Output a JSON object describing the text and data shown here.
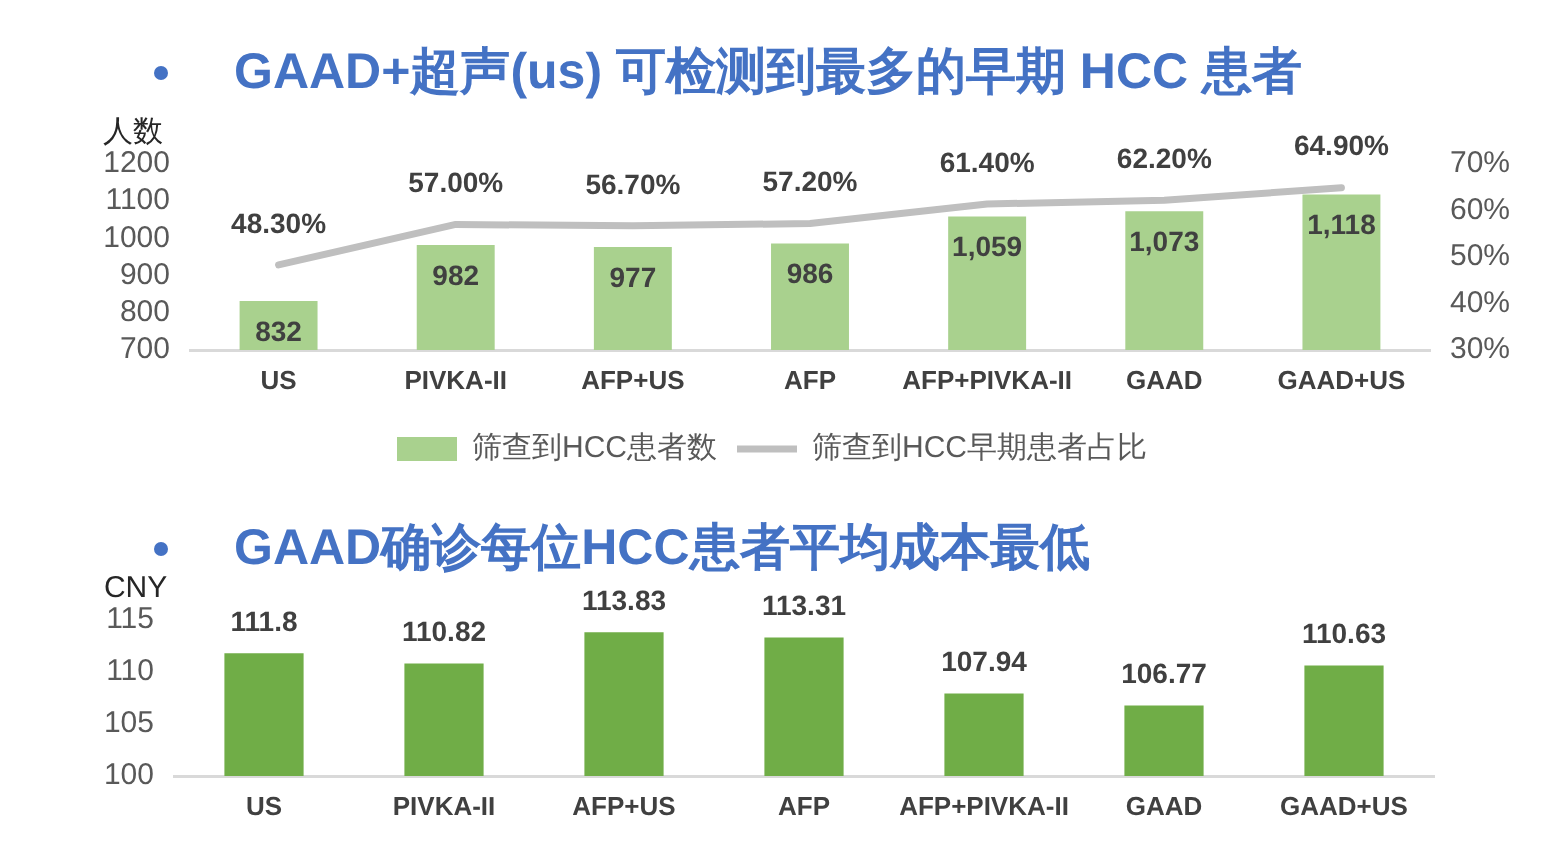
{
  "chart_data": [
    {
      "type": "bar",
      "title": "GAAD+超声(us) 可检测到最多的早期 HCC 患者",
      "ylabel": "人数",
      "categories": [
        "US",
        "PIVKA-II",
        "AFP+US",
        "AFP",
        "AFP+PIVKA-II",
        "GAAD",
        "GAAD+US"
      ],
      "series": [
        {
          "name": "筛查到HCC患者数",
          "color": "#a9d18e",
          "values": [
            832,
            982,
            977,
            986,
            1059,
            1073,
            1118
          ],
          "value_labels": [
            "832",
            "982",
            "977",
            "986",
            "1,059",
            "1,073",
            "1,118"
          ]
        },
        {
          "name": "筛查到HCC早期患者占比",
          "type": "line",
          "axis": "y2",
          "color": "#bfbfbf",
          "values": [
            48.3,
            57.0,
            56.7,
            57.2,
            61.4,
            62.2,
            64.9
          ],
          "value_labels": [
            "48.30%",
            "57.00%",
            "56.70%",
            "57.20%",
            "61.40%",
            "62.20%",
            "64.90%"
          ]
        }
      ],
      "ylim": [
        700,
        1200
      ],
      "yticks": [
        700,
        800,
        900,
        1000,
        1100,
        1200
      ],
      "y2lim": [
        30,
        70
      ],
      "y2ticks": [
        {
          "value": 30,
          "label": "30%"
        },
        {
          "value": 40,
          "label": "40%"
        },
        {
          "value": 50,
          "label": "50%"
        },
        {
          "value": 60,
          "label": "60%"
        },
        {
          "value": 70,
          "label": "70%"
        }
      ],
      "legend": "bottom",
      "marker": "none"
    },
    {
      "type": "bar",
      "title": "GAAD确诊每位HCC患者平均成本最低",
      "ylabel": "CNY",
      "categories": [
        "US",
        "PIVKA-II",
        "AFP+US",
        "AFP",
        "AFP+PIVKA-II",
        "GAAD",
        "GAAD+US"
      ],
      "values": [
        111.8,
        110.82,
        113.83,
        113.31,
        107.94,
        106.77,
        110.63
      ],
      "color": "#70ad47",
      "ylim": [
        100,
        115
      ],
      "yticks": [
        100,
        105,
        110,
        115
      ],
      "data_labels": true
    }
  ]
}
